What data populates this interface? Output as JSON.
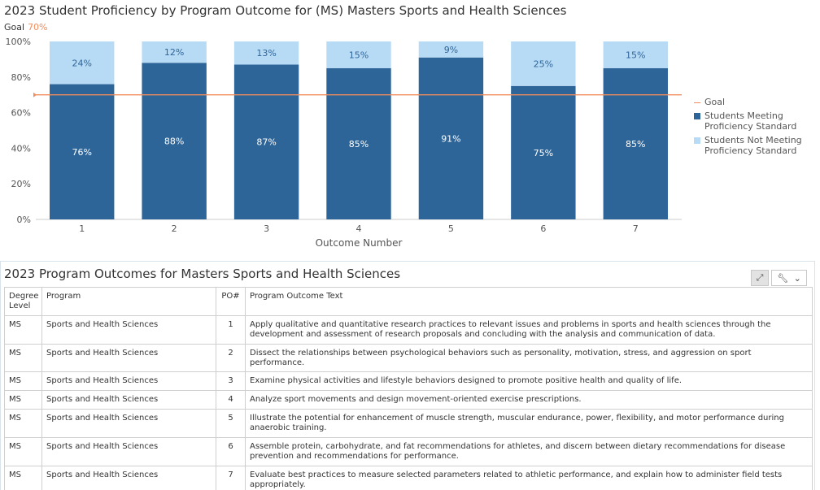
{
  "chart_title": "2023 Student Proficiency by Program Outcome for (MS) Masters Sports and Health Sciences",
  "goal_caption": {
    "label": "Goal",
    "value": "70%"
  },
  "chart_data": {
    "type": "bar",
    "stacked": true,
    "title": "2023 Student Proficiency by Program Outcome for (MS) Masters Sports and Health Sciences",
    "xlabel": "Outcome Number",
    "ylabel": "",
    "categories": [
      "1",
      "2",
      "3",
      "4",
      "5",
      "6",
      "7"
    ],
    "y_ticks": [
      "0%",
      "20%",
      "40%",
      "60%",
      "80%",
      "100%"
    ],
    "ylim": [
      0,
      100
    ],
    "goal": 70,
    "series": [
      {
        "name": "Students Meeting Proficiency Standard",
        "values": [
          76,
          88,
          87,
          85,
          91,
          75,
          85
        ],
        "color": "#2e6599"
      },
      {
        "name": "Students Not Meeting Proficiency Standard",
        "values": [
          24,
          12,
          13,
          15,
          9,
          25,
          15
        ],
        "color": "#b8dbf5"
      }
    ],
    "goal_color": "#f28c5c",
    "legend_position": "right",
    "grid": false
  },
  "legend": {
    "goal": "Goal",
    "meeting": [
      "Students Meeting",
      "Proficiency Standard"
    ],
    "not_meeting": [
      "Students Not Meeting",
      "Proficiency Standard"
    ]
  },
  "table_title": "2023 Program Outcomes for Masters Sports and Health Sciences",
  "table": {
    "headers": {
      "degree": "Degree Level",
      "program": "Program",
      "po": "PO#",
      "text": "Program Outcome Text"
    },
    "rows": [
      {
        "degree": "MS",
        "program": "Sports and Health Sciences",
        "po": "1",
        "text": "Apply qualitative and quantitative research practices to relevant issues and problems in sports and health sciences through the development and assessment of research proposals and concluding with the analysis and communication of data."
      },
      {
        "degree": "MS",
        "program": "Sports and Health Sciences",
        "po": "2",
        "text": "Dissect the relationships between psychological behaviors such as personality, motivation, stress, and aggression on sport performance."
      },
      {
        "degree": "MS",
        "program": "Sports and Health Sciences",
        "po": "3",
        "text": "Examine physical activities and lifestyle behaviors designed to promote positive health and quality of life."
      },
      {
        "degree": "MS",
        "program": "Sports and Health Sciences",
        "po": "4",
        "text": "Analyze sport movements and design movement-oriented exercise prescriptions."
      },
      {
        "degree": "MS",
        "program": "Sports and Health Sciences",
        "po": "5",
        "text": "Illustrate the potential for enhancement of muscle strength, muscular endurance, power, flexibility, and motor performance during anaerobic training."
      },
      {
        "degree": "MS",
        "program": "Sports and Health Sciences",
        "po": "6",
        "text": "Assemble protein, carbohydrate, and fat recommendations for athletes, and discern between dietary recommendations for disease prevention and recommendations for performance."
      },
      {
        "degree": "MS",
        "program": "Sports and Health Sciences",
        "po": "7",
        "text": "Evaluate best practices to measure selected parameters related to athletic performance, and explain how to administer field tests appropriately."
      }
    ]
  },
  "toolbar": {
    "expand_icon": "expand-icon",
    "tools_icon": "wrench-icon",
    "dropdown_icon": "chevron-down-icon"
  }
}
